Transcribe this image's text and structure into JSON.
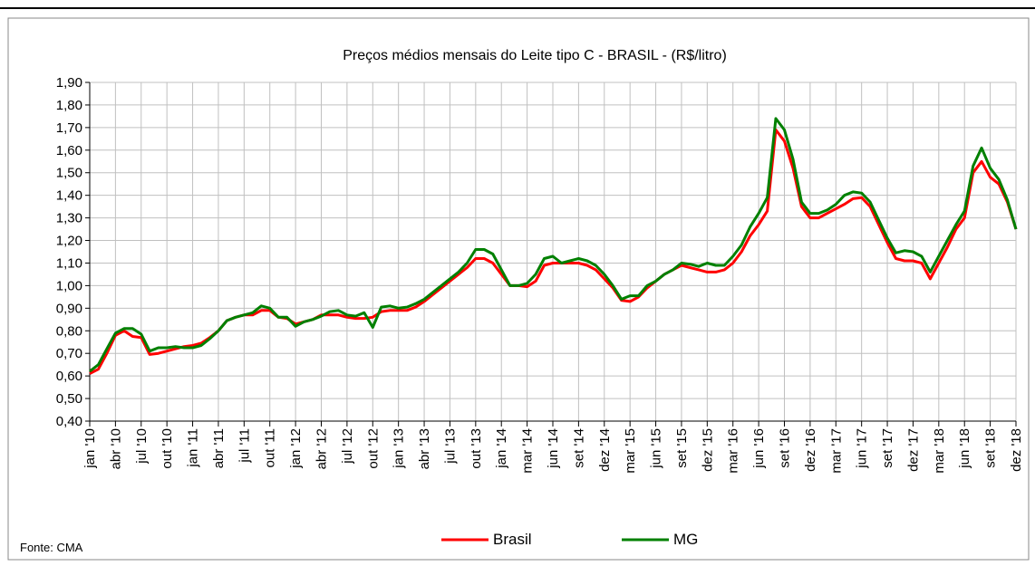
{
  "chart_data": {
    "type": "line",
    "title": "Preços médios mensais do Leite tipo C - BRASIL - (R$/litro)",
    "note": "Fonte: CMA",
    "categories": [
      "jan '10",
      null,
      null,
      "abr '10",
      null,
      null,
      "jul '10",
      null,
      null,
      "out '10",
      null,
      null,
      "jan '11",
      null,
      null,
      "abr '11",
      null,
      null,
      "jul '11",
      null,
      null,
      "out '11",
      null,
      null,
      "jan '12",
      null,
      null,
      "abr '12",
      null,
      null,
      "jul '12",
      null,
      null,
      "out '12",
      null,
      null,
      "jan '13",
      null,
      null,
      "abr '13",
      null,
      null,
      "jul '13",
      null,
      null,
      "out '13",
      null,
      null,
      "jan '14",
      null,
      null,
      "mar '14",
      null,
      null,
      "jun '14",
      null,
      null,
      "set '14",
      null,
      null,
      "dez '14",
      null,
      null,
      "mar '15",
      null,
      null,
      "jun '15",
      null,
      null,
      "set '15",
      null,
      null,
      "dez '15",
      null,
      null,
      "mar '16",
      null,
      null,
      "jun '16",
      null,
      null,
      "set '16",
      null,
      null,
      "dez '16",
      null,
      null,
      "mar '17",
      null,
      null,
      "jun '17",
      null,
      null,
      "set '17",
      null,
      null,
      "dez '17",
      null,
      null,
      "mar '18",
      null,
      null,
      "jun '18",
      null,
      null,
      "set '18",
      null,
      null,
      "dez '18"
    ],
    "series": [
      {
        "name": "Brasil",
        "color": "#ff0000",
        "values": [
          0.61,
          0.63,
          0.7,
          0.78,
          0.8,
          0.775,
          0.77,
          0.695,
          0.7,
          0.71,
          0.72,
          0.73,
          0.735,
          0.745,
          0.77,
          0.8,
          0.845,
          0.86,
          0.87,
          0.87,
          0.89,
          0.89,
          0.86,
          0.855,
          0.83,
          0.84,
          0.85,
          0.87,
          0.87,
          0.87,
          0.86,
          0.855,
          0.855,
          0.86,
          0.885,
          0.89,
          0.89,
          0.89,
          0.905,
          0.93,
          0.96,
          0.99,
          1.02,
          1.05,
          1.08,
          1.12,
          1.12,
          1.1,
          1.05,
          1.0,
          1.0,
          0.995,
          1.02,
          1.09,
          1.1,
          1.1,
          1.1,
          1.1,
          1.09,
          1.07,
          1.03,
          0.99,
          0.935,
          0.93,
          0.95,
          0.99,
          1.02,
          1.05,
          1.07,
          1.09,
          1.08,
          1.07,
          1.06,
          1.06,
          1.07,
          1.1,
          1.15,
          1.22,
          1.27,
          1.33,
          1.69,
          1.64,
          1.52,
          1.35,
          1.3,
          1.3,
          1.32,
          1.34,
          1.36,
          1.385,
          1.39,
          1.35,
          1.27,
          1.19,
          1.12,
          1.11,
          1.11,
          1.1,
          1.03,
          1.1,
          1.17,
          1.25,
          1.3,
          1.5,
          1.55,
          1.48,
          1.45,
          1.37,
          1.25
        ]
      },
      {
        "name": "MG",
        "color": "#008000",
        "values": [
          0.62,
          0.65,
          0.72,
          0.79,
          0.81,
          0.81,
          0.785,
          0.71,
          0.725,
          0.725,
          0.73,
          0.725,
          0.725,
          0.735,
          0.765,
          0.8,
          0.845,
          0.86,
          0.87,
          0.88,
          0.91,
          0.9,
          0.86,
          0.86,
          0.82,
          0.84,
          0.85,
          0.865,
          0.885,
          0.89,
          0.87,
          0.865,
          0.88,
          0.815,
          0.905,
          0.91,
          0.9,
          0.905,
          0.92,
          0.94,
          0.97,
          1.0,
          1.03,
          1.06,
          1.1,
          1.16,
          1.16,
          1.14,
          1.07,
          1.0,
          1.0,
          1.01,
          1.05,
          1.12,
          1.13,
          1.1,
          1.11,
          1.12,
          1.11,
          1.09,
          1.05,
          1.0,
          0.94,
          0.955,
          0.955,
          1.0,
          1.02,
          1.05,
          1.07,
          1.1,
          1.095,
          1.085,
          1.1,
          1.09,
          1.09,
          1.13,
          1.18,
          1.26,
          1.32,
          1.39,
          1.74,
          1.69,
          1.56,
          1.37,
          1.32,
          1.32,
          1.335,
          1.36,
          1.4,
          1.415,
          1.41,
          1.37,
          1.29,
          1.21,
          1.145,
          1.155,
          1.15,
          1.13,
          1.06,
          1.13,
          1.2,
          1.27,
          1.33,
          1.53,
          1.61,
          1.52,
          1.47,
          1.38,
          1.25
        ]
      }
    ],
    "ylim": [
      0.4,
      1.9
    ],
    "yticks": [
      {
        "value": 0.4,
        "label": "0,40"
      },
      {
        "value": 0.5,
        "label": "0,50"
      },
      {
        "value": 0.6,
        "label": "0,60"
      },
      {
        "value": 0.7,
        "label": "0,70"
      },
      {
        "value": 0.8,
        "label": "0,80"
      },
      {
        "value": 0.9,
        "label": "0,90"
      },
      {
        "value": 1.0,
        "label": "1,00"
      },
      {
        "value": 1.1,
        "label": "1,10"
      },
      {
        "value": 1.2,
        "label": "1,20"
      },
      {
        "value": 1.3,
        "label": "1,30"
      },
      {
        "value": 1.4,
        "label": "1,40"
      },
      {
        "value": 1.5,
        "label": "1,50"
      },
      {
        "value": 1.6,
        "label": "1,60"
      },
      {
        "value": 1.7,
        "label": "1,70"
      },
      {
        "value": 1.8,
        "label": "1,80"
      },
      {
        "value": 1.9,
        "label": "1,90"
      }
    ],
    "grid": true,
    "legend": "bottom"
  }
}
